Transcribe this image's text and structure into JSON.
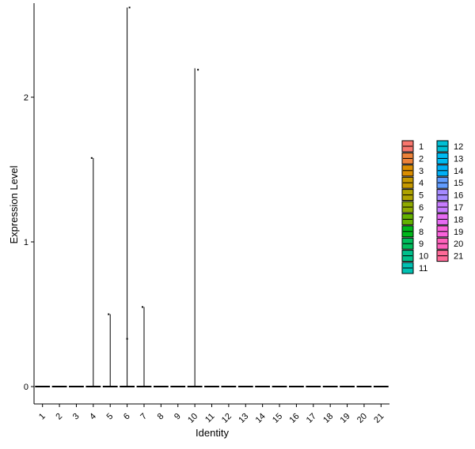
{
  "chart_data": {
    "type": "violin",
    "xlabel": "Identity",
    "ylabel": "Expression Level",
    "categories": [
      "1",
      "2",
      "3",
      "4",
      "5",
      "6",
      "7",
      "8",
      "9",
      "10",
      "11",
      "12",
      "13",
      "14",
      "15",
      "16",
      "17",
      "18",
      "19",
      "20",
      "21"
    ],
    "ylim": [
      -0.12,
      2.65
    ],
    "yticks": [
      0,
      1,
      2
    ],
    "violin_max": [
      0,
      0,
      0,
      1.58,
      0.5,
      2.62,
      0.55,
      0,
      0,
      2.2,
      0,
      0,
      0,
      0,
      0,
      0,
      0,
      0,
      0,
      0,
      0
    ],
    "points": [
      {
        "category": "4",
        "y": 1.58
      },
      {
        "category": "5",
        "y": 0.5
      },
      {
        "category": "6",
        "y": 2.62
      },
      {
        "category": "6",
        "y": 0.33
      },
      {
        "category": "7",
        "y": 0.55
      },
      {
        "category": "10",
        "y": 2.19
      }
    ],
    "legend": {
      "position": "right",
      "columns": 2,
      "entries": [
        {
          "label": "1",
          "color": "#F8766D"
        },
        {
          "label": "2",
          "color": "#EC8239"
        },
        {
          "label": "3",
          "color": "#DB8E00"
        },
        {
          "label": "4",
          "color": "#C69900"
        },
        {
          "label": "5",
          "color": "#AEA200"
        },
        {
          "label": "6",
          "color": "#8FAA00"
        },
        {
          "label": "7",
          "color": "#64B200"
        },
        {
          "label": "8",
          "color": "#00B81B"
        },
        {
          "label": "9",
          "color": "#00BD5C"
        },
        {
          "label": "10",
          "color": "#00C08B"
        },
        {
          "label": "11",
          "color": "#00C1B2"
        },
        {
          "label": "12",
          "color": "#00BFD4"
        },
        {
          "label": "13",
          "color": "#00BAF0"
        },
        {
          "label": "14",
          "color": "#00B0F6"
        },
        {
          "label": "15",
          "color": "#619CFF"
        },
        {
          "label": "16",
          "color": "#A58AFF"
        },
        {
          "label": "17",
          "color": "#C77CFF"
        },
        {
          "label": "18",
          "color": "#E76BF3"
        },
        {
          "label": "19",
          "color": "#FA62DB"
        },
        {
          "label": "20",
          "color": "#FF62BC"
        },
        {
          "label": "21",
          "color": "#FF6A98"
        }
      ]
    },
    "grid": false
  }
}
